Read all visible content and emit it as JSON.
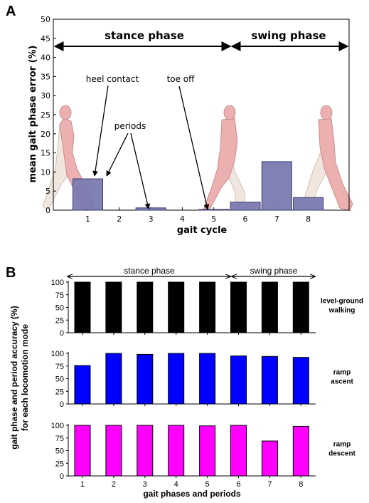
{
  "panel_labels": [
    "A",
    "B"
  ],
  "colors": {
    "bar_a": "#7a7ab0",
    "bar_a_edge": "#3a3a70",
    "level_ground": "#000000",
    "ramp_ascent": "#0000ff",
    "ramp_descent": "#ff00ff",
    "figure": "#e8a0a0"
  },
  "chart_data": [
    {
      "type": "bar",
      "ylabel": "mean gait phase error (%)",
      "xlabel": "gait cycle",
      "x": [
        1,
        2,
        3,
        4,
        5,
        6,
        7,
        8
      ],
      "values": [
        8.2,
        0,
        0.6,
        0,
        0.2,
        2.1,
        12.7,
        3.3
      ],
      "ylim": [
        0,
        50
      ],
      "yticks": [
        "0",
        "5",
        "10",
        "15",
        "20",
        "25",
        "30",
        "35",
        "40",
        "45",
        "50"
      ],
      "xticks": [
        "1",
        "2",
        "3",
        "4",
        "5",
        "6",
        "7",
        "8"
      ],
      "phases": [
        "stance phase",
        "swing phase"
      ],
      "annotations": [
        "heel contact",
        "periods",
        "toe off"
      ],
      "grid": false
    },
    {
      "type": "bar",
      "ylabel": "gait phase and period accuracy (%)",
      "ylabel2": "for each locomotion mode",
      "xlabel": "gait phases and periods",
      "categories": [
        "1",
        "2",
        "3",
        "4",
        "5",
        "6",
        "7",
        "8"
      ],
      "phases": [
        "stance phase",
        "swing phase"
      ],
      "ylim": [
        0,
        100
      ],
      "yticks": [
        "0",
        "25",
        "50",
        "75",
        "100"
      ],
      "grid": false,
      "series": [
        {
          "name": "level-ground walking",
          "label_lines": [
            "level-ground",
            "walking"
          ],
          "values": [
            100,
            100,
            100,
            100,
            100,
            100,
            100,
            100
          ]
        },
        {
          "name": "ramp ascent",
          "label_lines": [
            "ramp",
            "ascent"
          ],
          "values": [
            76,
            100,
            98,
            100,
            100,
            95,
            94,
            92
          ]
        },
        {
          "name": "ramp descent",
          "label_lines": [
            "ramp",
            "descent"
          ],
          "values": [
            100,
            100,
            100,
            100,
            99,
            100,
            69,
            98
          ]
        }
      ]
    }
  ]
}
